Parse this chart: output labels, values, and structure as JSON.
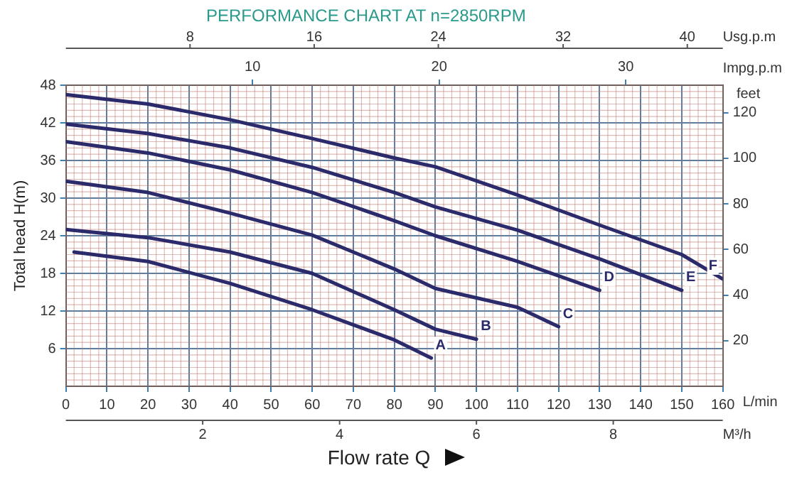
{
  "chart_data": {
    "type": "line",
    "title": "PERFORMANCE CHART AT n=2850RPM",
    "xlabel": "L/min",
    "ylabel": "Total head H(m)",
    "y2label": "feet",
    "x2label": "Impg.p.m",
    "annotations": [
      "Flow rate Q",
      "8",
      "16",
      "24",
      "32",
      "40",
      "Usg.p.m",
      "2",
      "4",
      "6",
      "8",
      "M³/h"
    ],
    "xlim": [
      0,
      160
    ],
    "xticks": [
      0,
      10,
      20,
      30,
      40,
      50,
      60,
      70,
      80,
      90,
      100,
      110,
      120,
      130,
      140,
      150,
      160
    ],
    "ylim": [
      0,
      48
    ],
    "yticks": [
      6,
      12,
      18,
      24,
      30,
      36,
      42,
      48
    ],
    "y2lim": [
      0,
      132
    ],
    "y2ticks": [
      20,
      40,
      60,
      80,
      100,
      120
    ],
    "x2lim": [
      0,
      35.2
    ],
    "x2ticks": [
      10,
      20,
      30
    ],
    "grid": true,
    "legend": false,
    "marker": "none",
    "line_style": "solid",
    "series": [
      {
        "name": "A",
        "color": "#2b2a6b",
        "x": [
          2,
          20,
          40,
          60,
          80,
          89
        ],
        "values": [
          21.4,
          19.9,
          16.4,
          12.2,
          7.4,
          4.5
        ]
      },
      {
        "name": "B",
        "color": "#2b2a6b",
        "x": [
          0,
          20,
          40,
          60,
          80,
          90,
          100
        ],
        "values": [
          25,
          23.7,
          21.4,
          18,
          12.2,
          9.1,
          7.5
        ]
      },
      {
        "name": "C",
        "color": "#2b2a6b",
        "x": [
          0,
          20,
          40,
          60,
          80,
          90,
          110,
          120
        ],
        "values": [
          32.7,
          30.9,
          27.6,
          24.1,
          18.7,
          15.6,
          12.6,
          9.5
        ]
      },
      {
        "name": "D",
        "color": "#2b2a6b",
        "x": [
          0,
          20,
          40,
          60,
          80,
          90,
          110,
          130
        ],
        "values": [
          39,
          37.2,
          34.5,
          30.9,
          26.4,
          24,
          19.9,
          15.3
        ]
      },
      {
        "name": "E",
        "color": "#2b2a6b",
        "x": [
          0,
          20,
          40,
          60,
          80,
          90,
          110,
          130,
          150
        ],
        "values": [
          41.8,
          40.3,
          38,
          34.9,
          30.9,
          28.6,
          24.9,
          20.3,
          15.3
        ]
      },
      {
        "name": "F",
        "color": "#2b2a6b",
        "x": [
          0,
          20,
          40,
          60,
          80,
          90,
          110,
          130,
          150,
          160
        ],
        "values": [
          46.5,
          45,
          42.5,
          39.5,
          36.4,
          35,
          30.5,
          25.7,
          21,
          17.1
        ]
      }
    ]
  }
}
